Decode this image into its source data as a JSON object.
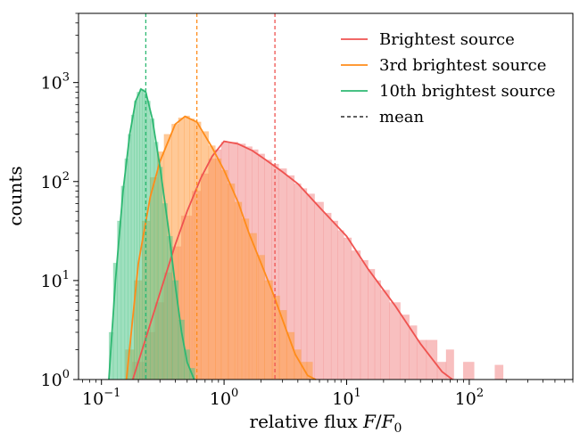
{
  "chart_data": {
    "type": "histogram",
    "title": "",
    "xlabel": "relative flux F/F₀",
    "xlabel_parts": {
      "main": "relative flux ",
      "var": "F",
      "slash": "/",
      "base": "F",
      "sub": "0"
    },
    "ylabel": "counts",
    "x_scale": "log",
    "y_scale": "log",
    "xlim": [
      0.065,
      700
    ],
    "ylim": [
      1,
      5000
    ],
    "x_ticks": [
      {
        "value": 0.1,
        "base": "10",
        "exp": "−1"
      },
      {
        "value": 1,
        "base": "10",
        "exp": "0"
      },
      {
        "value": 10,
        "base": "10",
        "exp": "1"
      },
      {
        "value": 100,
        "base": "10",
        "exp": "2"
      }
    ],
    "y_ticks": [
      {
        "value": 1,
        "base": "10",
        "exp": "0"
      },
      {
        "value": 10,
        "base": "10",
        "exp": "1"
      },
      {
        "value": 100,
        "base": "10",
        "exp": "2"
      },
      {
        "value": 1000,
        "base": "10",
        "exp": "3"
      }
    ],
    "grid": false,
    "legend_position": "top-right",
    "series": [
      {
        "name": "Brightest source",
        "color": "#ef5350",
        "fill_color": "#f28b8b",
        "mean": 2.6,
        "fit_curve": {
          "x": [
            0.18,
            0.22,
            0.3,
            0.4,
            0.5,
            0.65,
            0.8,
            1.0,
            1.3,
            1.7,
            2.2,
            3.0,
            4.0,
            6.0,
            10,
            15,
            25,
            40,
            60,
            73
          ],
          "y": [
            1,
            2.2,
            7.5,
            23,
            50,
            110,
            180,
            255,
            240,
            205,
            165,
            125,
            95,
            55,
            28,
            13,
            5.5,
            2.3,
            1.2,
            1.0
          ]
        },
        "histogram": {
          "x": [
            0.2,
            0.25,
            0.3,
            0.35,
            0.4,
            0.5,
            0.6,
            0.7,
            0.8,
            0.9,
            1.0,
            1.2,
            1.4,
            1.6,
            1.8,
            2.0,
            2.3,
            2.6,
            3.0,
            3.5,
            4.0,
            4.5,
            5.0,
            6.0,
            7.0,
            8.0,
            9.0,
            10,
            12,
            14,
            16,
            18,
            20,
            25,
            30,
            35,
            40,
            50,
            60,
            70,
            80,
            100,
            120,
            150,
            175
          ],
          "y": [
            1.5,
            3,
            6,
            12,
            22,
            45,
            80,
            120,
            170,
            210,
            250,
            250,
            240,
            225,
            210,
            190,
            165,
            150,
            135,
            115,
            95,
            85,
            75,
            62,
            48,
            40,
            32,
            27,
            20,
            16,
            13,
            10,
            8,
            6,
            4.5,
            3.5,
            2.5,
            2.5,
            1.5,
            2,
            1,
            1.5,
            1,
            1,
            1.4
          ]
        }
      },
      {
        "name": "3rd brightest source",
        "color": "#ff8c1a",
        "fill_color": "#ff9d42",
        "mean": 0.6,
        "fit_curve": {
          "x": [
            0.16,
            0.2,
            0.25,
            0.3,
            0.4,
            0.48,
            0.6,
            0.8,
            1.0,
            1.3,
            1.6,
            2.0,
            2.5,
            3.0,
            3.8,
            4.8,
            5.6
          ],
          "y": [
            1,
            15,
            70,
            160,
            380,
            455,
            400,
            220,
            130,
            62,
            30,
            15,
            7.5,
            4,
            1.8,
            1.1,
            1.0
          ]
        },
        "histogram": {
          "x": [
            0.17,
            0.2,
            0.23,
            0.27,
            0.3,
            0.35,
            0.4,
            0.45,
            0.5,
            0.55,
            0.6,
            0.7,
            0.8,
            0.9,
            1.0,
            1.15,
            1.3,
            1.5,
            1.7,
            2.0,
            2.3,
            2.7,
            3.0,
            3.5,
            4.0,
            4.5,
            5.0
          ],
          "y": [
            2,
            10,
            40,
            110,
            200,
            300,
            380,
            440,
            460,
            430,
            400,
            320,
            230,
            170,
            130,
            95,
            62,
            42,
            30,
            18,
            10,
            7,
            5,
            3,
            2,
            1.5,
            1.5
          ]
        }
      },
      {
        "name": "10th brightest source",
        "color": "#2eb872",
        "fill_color": "#52c68a",
        "mean": 0.23,
        "fit_curve": {
          "x": [
            0.115,
            0.13,
            0.15,
            0.17,
            0.19,
            0.21,
            0.23,
            0.26,
            0.3,
            0.35,
            0.4,
            0.45,
            0.5,
            0.57
          ],
          "y": [
            1,
            10,
            80,
            300,
            650,
            860,
            800,
            430,
            140,
            35,
            9,
            3,
            1.5,
            1.0
          ]
        },
        "histogram": {
          "x": [
            0.12,
            0.13,
            0.14,
            0.15,
            0.16,
            0.17,
            0.18,
            0.19,
            0.2,
            0.21,
            0.22,
            0.23,
            0.24,
            0.26,
            0.28,
            0.3,
            0.33,
            0.36,
            0.4,
            0.45,
            0.5,
            0.55
          ],
          "y": [
            3,
            15,
            40,
            90,
            170,
            300,
            470,
            650,
            800,
            860,
            850,
            770,
            650,
            430,
            250,
            140,
            60,
            28,
            10,
            4,
            2,
            1.3
          ]
        }
      }
    ],
    "legend": [
      {
        "name": "Brightest source",
        "style": "line",
        "color": "#ef5350"
      },
      {
        "name": "3rd brightest source",
        "style": "line",
        "color": "#ff8c1a"
      },
      {
        "name": "10th brightest source",
        "style": "line",
        "color": "#2eb872"
      },
      {
        "name": "mean",
        "style": "dashed",
        "color": "#000000"
      }
    ]
  }
}
